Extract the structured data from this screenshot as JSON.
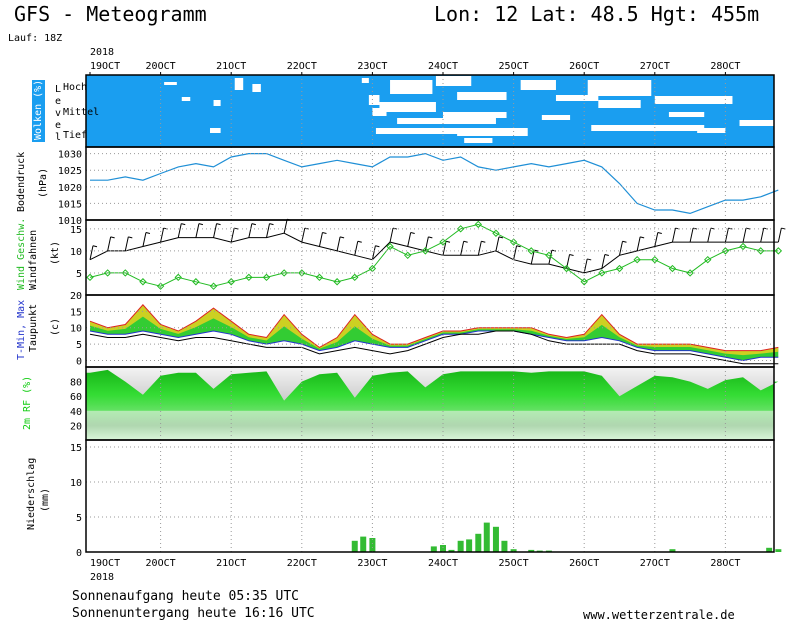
{
  "header": {
    "title": "GFS - Meteogramm",
    "coords": "Lon: 12 Lat: 48.5 Hgt: 455m",
    "run": "Lauf: 18Z"
  },
  "footer": {
    "sunrise": "Sonnenaufgang heute 05:35 UTC",
    "sunset": "Sonnenuntergang heute 16:16 UTC",
    "url": "www.wetterzentrale.de"
  },
  "colors": {
    "cloud_blue": "#1a9ef0",
    "pressure_line": "#1f8fd6",
    "wind_green": "#22bb22",
    "humidity_green": "#11cc11",
    "precip_green": "#33bb33",
    "temp_max": "#dd2222",
    "temp_min": "#2233cc"
  },
  "chart_data": [
    {
      "type": "heatmap",
      "panel": "clouds",
      "ylabel": "Wolken (%)",
      "axis_letters": [
        "L",
        "e",
        "v",
        "e",
        "l"
      ],
      "levels": [
        "Hoch",
        "Mittel",
        "Tief"
      ],
      "x_year": "2018",
      "x_ticks": [
        "19OCT",
        "20OCT",
        "21OCT",
        "22OCT",
        "23OCT",
        "24OCT",
        "25OCT",
        "26OCT",
        "27OCT",
        "28OCT"
      ],
      "note": "blue = cloud cover, white = clear"
    },
    {
      "type": "line",
      "panel": "pressure",
      "ylabel": "Bodendruck",
      "yunit": "(hPa)",
      "ylim": [
        1010,
        1032
      ],
      "yticks": [
        1010,
        1015,
        1020,
        1025,
        1030
      ],
      "x": [
        0,
        0.25,
        0.5,
        0.75,
        1,
        1.25,
        1.5,
        1.75,
        2,
        2.25,
        2.5,
        2.75,
        3,
        3.25,
        3.5,
        3.75,
        4,
        4.25,
        4.5,
        4.75,
        5,
        5.25,
        5.5,
        5.75,
        6,
        6.25,
        6.5,
        6.75,
        7,
        7.25,
        7.5,
        7.75,
        8,
        8.25,
        8.5,
        8.75,
        9,
        9.25,
        9.5,
        9.75
      ],
      "values": [
        1022,
        1022,
        1023,
        1022,
        1024,
        1026,
        1027,
        1026,
        1029,
        1030,
        1030,
        1028,
        1026,
        1027,
        1028,
        1027,
        1026,
        1029,
        1029,
        1030,
        1028,
        1029,
        1026,
        1025,
        1026,
        1027,
        1026,
        1027,
        1028,
        1026,
        1021,
        1015,
        1013,
        1013,
        1012,
        1014,
        1016,
        1016,
        1017,
        1019
      ]
    },
    {
      "type": "line",
      "panel": "wind",
      "ylabel": "Wind Geschw.",
      "ylabel2": "Windfahnen",
      "yunit": "(kt)",
      "ylim": [
        0,
        17
      ],
      "yticks": [
        5,
        10,
        15
      ],
      "x": [
        0,
        0.25,
        0.5,
        0.75,
        1,
        1.25,
        1.5,
        1.75,
        2,
        2.25,
        2.5,
        2.75,
        3,
        3.25,
        3.5,
        3.75,
        4,
        4.25,
        4.5,
        4.75,
        5,
        5.25,
        5.5,
        5.75,
        6,
        6.25,
        6.5,
        6.75,
        7,
        7.25,
        7.5,
        7.75,
        8,
        8.25,
        8.5,
        8.75,
        9,
        9.25,
        9.5,
        9.75
      ],
      "values": [
        4,
        5,
        5,
        3,
        2,
        4,
        3,
        2,
        3,
        4,
        4,
        5,
        5,
        4,
        3,
        4,
        6,
        11,
        9,
        10,
        12,
        15,
        16,
        14,
        12,
        10,
        9,
        6,
        3,
        5,
        6,
        8,
        8,
        6,
        5,
        8,
        10,
        11,
        10,
        10
      ],
      "barb_values": [
        8,
        10,
        10,
        11,
        12,
        13,
        13,
        13,
        12,
        13,
        13,
        14,
        12,
        11,
        10,
        9,
        8,
        12,
        11,
        10,
        9,
        9,
        9,
        10,
        8,
        7,
        7,
        6,
        5,
        6,
        9,
        10,
        11,
        12,
        12,
        12,
        12,
        12,
        12,
        12
      ]
    },
    {
      "type": "area",
      "panel": "temperature",
      "ylabel": "T-Min, Max",
      "ylabel2": "Taupunkt",
      "yunit": "(c)",
      "ylim": [
        -2,
        20
      ],
      "yticks": [
        0,
        5,
        10,
        15,
        20
      ],
      "x": [
        0,
        0.25,
        0.5,
        0.75,
        1,
        1.25,
        1.5,
        1.75,
        2,
        2.25,
        2.5,
        2.75,
        3,
        3.25,
        3.5,
        3.75,
        4,
        4.25,
        4.5,
        4.75,
        5,
        5.25,
        5.5,
        5.75,
        6,
        6.25,
        6.5,
        6.75,
        7,
        7.25,
        7.5,
        7.75,
        8,
        8.25,
        8.5,
        8.75,
        9,
        9.25,
        9.5,
        9.75
      ],
      "series": [
        {
          "name": "Max",
          "values": [
            12,
            10,
            11,
            17,
            11,
            9,
            12,
            16,
            12,
            8,
            7,
            14,
            8,
            4,
            7,
            14,
            8,
            5,
            5,
            7,
            9,
            9,
            10,
            10,
            10,
            10,
            8,
            7,
            8,
            14,
            8,
            5,
            5,
            5,
            5,
            4,
            3,
            3,
            3,
            4
          ]
        },
        {
          "name": "Min",
          "values": [
            9,
            8,
            8,
            9,
            8,
            7,
            8,
            9,
            8,
            6,
            5,
            6,
            5,
            3,
            4,
            6,
            5,
            4,
            4,
            6,
            8,
            8,
            9,
            9,
            9,
            8,
            7,
            6,
            6,
            7,
            6,
            4,
            3,
            3,
            3,
            2,
            1,
            0,
            1,
            1
          ]
        },
        {
          "name": "Taupunkt",
          "values": [
            8,
            7,
            7,
            8,
            7,
            6,
            7,
            7,
            6,
            5,
            4,
            4,
            4,
            2,
            3,
            4,
            3,
            2,
            3,
            5,
            7,
            8,
            8,
            9,
            9,
            8,
            6,
            5,
            5,
            5,
            5,
            3,
            2,
            2,
            2,
            1,
            0,
            -1,
            -1,
            -1
          ]
        }
      ]
    },
    {
      "type": "area",
      "panel": "humidity",
      "ylabel": "2m RF (%)",
      "ylim": [
        0,
        100
      ],
      "yticks": [
        20,
        40,
        60,
        80
      ],
      "x": [
        0,
        0.25,
        0.5,
        0.75,
        1,
        1.25,
        1.5,
        1.75,
        2,
        2.25,
        2.5,
        2.75,
        3,
        3.25,
        3.5,
        3.75,
        4,
        4.25,
        4.5,
        4.75,
        5,
        5.25,
        5.5,
        5.75,
        6,
        6.25,
        6.5,
        6.75,
        7,
        7.25,
        7.5,
        7.75,
        8,
        8.25,
        8.5,
        8.75,
        9,
        9.25,
        9.5,
        9.75
      ],
      "values": [
        92,
        96,
        80,
        62,
        88,
        92,
        92,
        70,
        90,
        92,
        94,
        54,
        80,
        90,
        92,
        58,
        88,
        92,
        94,
        72,
        90,
        94,
        94,
        94,
        94,
        92,
        94,
        94,
        94,
        88,
        60,
        74,
        88,
        86,
        80,
        70,
        82,
        86,
        68,
        80
      ]
    },
    {
      "type": "bar",
      "panel": "precip",
      "ylabel": "Niederschlag",
      "yunit": "(mm)",
      "ylim": [
        0,
        16
      ],
      "yticks": [
        0,
        5,
        10,
        15
      ],
      "x": [
        3.75,
        3.87,
        4.0,
        4.87,
        5.0,
        5.12,
        5.25,
        5.37,
        5.5,
        5.62,
        5.75,
        5.87,
        6.0,
        6.25,
        6.37,
        6.5,
        8.25,
        9.62,
        9.75
      ],
      "values": [
        1.6,
        2.2,
        2.0,
        0.8,
        1.0,
        0.3,
        1.6,
        1.8,
        2.6,
        4.2,
        3.6,
        1.6,
        0.4,
        0.3,
        0.2,
        0.2,
        0.4,
        0.6,
        0.4
      ]
    }
  ]
}
